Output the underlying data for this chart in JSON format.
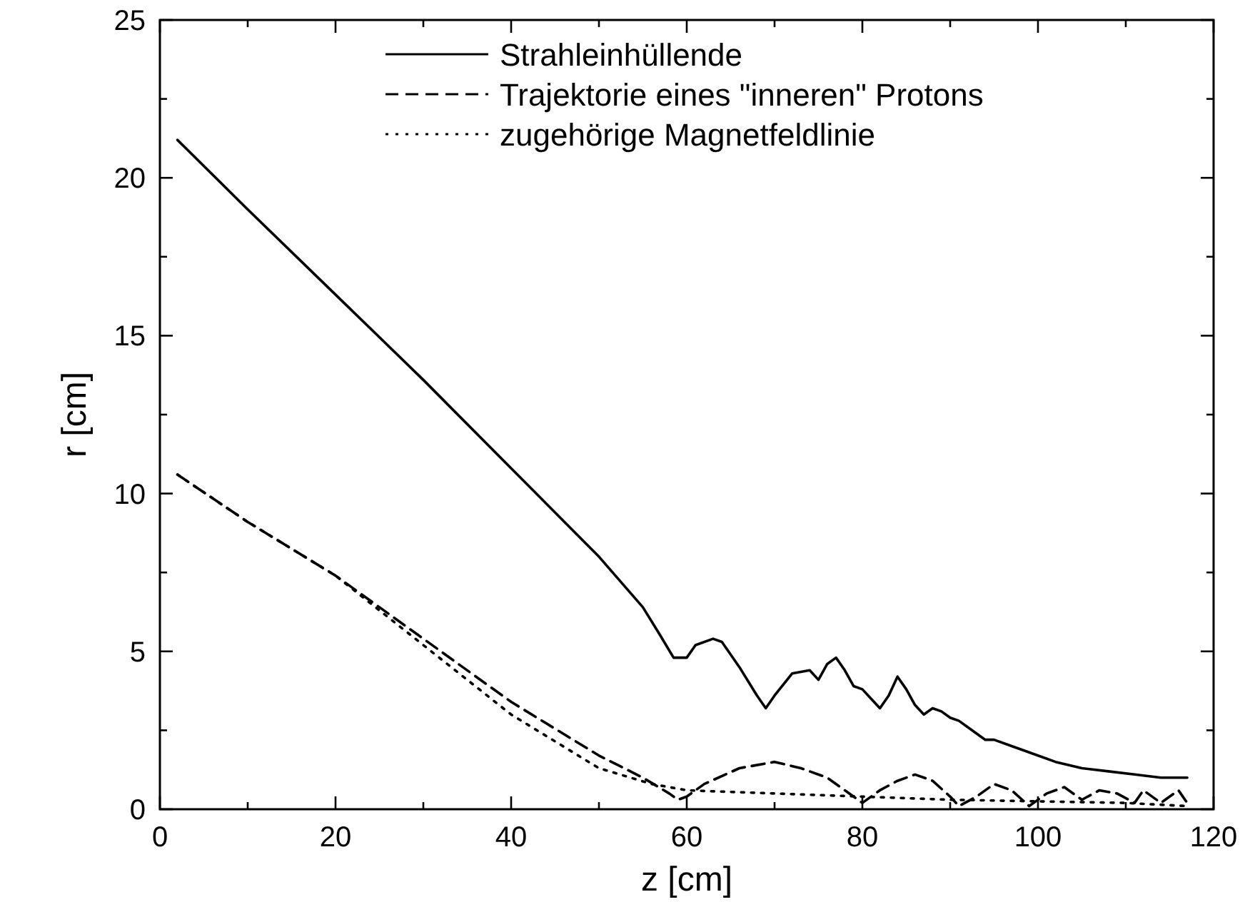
{
  "chart_data": {
    "type": "line",
    "xlabel": "z [cm]",
    "ylabel": "r [cm]",
    "xlim": [
      0,
      120
    ],
    "ylim": [
      0,
      25
    ],
    "xticks": [
      0,
      {
        "value": 10,
        "label": null
      },
      20,
      {
        "value": 30,
        "label": null
      },
      40,
      {
        "value": 50,
        "label": null
      },
      60,
      {
        "value": 70,
        "label": null
      },
      80,
      {
        "value": 90,
        "label": null
      },
      100,
      {
        "value": 110,
        "label": null
      },
      120
    ],
    "yticks": [
      0,
      {
        "value": 2.5,
        "label": null
      },
      5,
      {
        "value": 7.5,
        "label": null
      },
      10,
      {
        "value": 12.5,
        "label": null
      },
      15,
      {
        "value": 17.5,
        "label": null
      },
      20,
      {
        "value": 22.5,
        "label": null
      },
      25
    ],
    "grid": false,
    "legend": "top",
    "marker": "none",
    "series": [
      {
        "name": "Strahleinhüllende",
        "color": "#000000",
        "line_style": "solid",
        "x": [
          2,
          10,
          20,
          30,
          40,
          50,
          55,
          57,
          58.5,
          60,
          61,
          63,
          64,
          66,
          68,
          69,
          70,
          72,
          74,
          75,
          76,
          77,
          78,
          79,
          80,
          81,
          82,
          83,
          84,
          85,
          86,
          87,
          88,
          89,
          90,
          91,
          92,
          94,
          95,
          97,
          100,
          102,
          105,
          108,
          111,
          114,
          117
        ],
        "values": [
          21.2,
          19.0,
          16.3,
          13.6,
          10.8,
          8.0,
          6.4,
          5.5,
          4.8,
          4.8,
          5.2,
          5.4,
          5.3,
          4.5,
          3.6,
          3.2,
          3.6,
          4.3,
          4.4,
          4.1,
          4.6,
          4.8,
          4.4,
          3.9,
          3.8,
          3.5,
          3.2,
          3.6,
          4.2,
          3.8,
          3.3,
          3.0,
          3.2,
          3.1,
          2.9,
          2.8,
          2.6,
          2.2,
          2.2,
          2.0,
          1.7,
          1.5,
          1.3,
          1.2,
          1.1,
          1.0,
          1.0
        ]
      },
      {
        "name": "Trajektorie eines \"inneren\" Protons",
        "color": "#000000",
        "line_style": "dashed",
        "x": [
          2,
          10,
          20,
          30,
          40,
          50,
          55,
          58,
          59,
          60,
          62,
          66,
          70,
          73,
          76,
          79,
          80,
          82,
          84,
          86,
          88,
          90,
          91,
          93,
          95,
          97,
          99,
          101,
          103,
          105,
          107,
          109,
          111,
          112,
          114,
          116,
          117
        ],
        "values": [
          10.6,
          9.1,
          7.4,
          5.4,
          3.4,
          1.7,
          1.0,
          0.5,
          0.3,
          0.4,
          0.8,
          1.3,
          1.5,
          1.3,
          1.0,
          0.4,
          0.2,
          0.6,
          0.9,
          1.1,
          0.9,
          0.4,
          0.1,
          0.4,
          0.8,
          0.6,
          0.1,
          0.5,
          0.7,
          0.3,
          0.6,
          0.5,
          0.2,
          0.6,
          0.2,
          0.6,
          0.2
        ]
      },
      {
        "name": "zugehörige Magnetfeldlinie",
        "color": "#000000",
        "line_style": "dotted",
        "x": [
          2,
          10,
          20,
          30,
          40,
          50,
          56,
          60,
          70,
          80,
          90,
          100,
          110,
          117
        ],
        "values": [
          10.6,
          9.1,
          7.4,
          5.2,
          3.0,
          1.3,
          0.8,
          0.6,
          0.5,
          0.4,
          0.3,
          0.25,
          0.2,
          0.1
        ]
      }
    ]
  }
}
